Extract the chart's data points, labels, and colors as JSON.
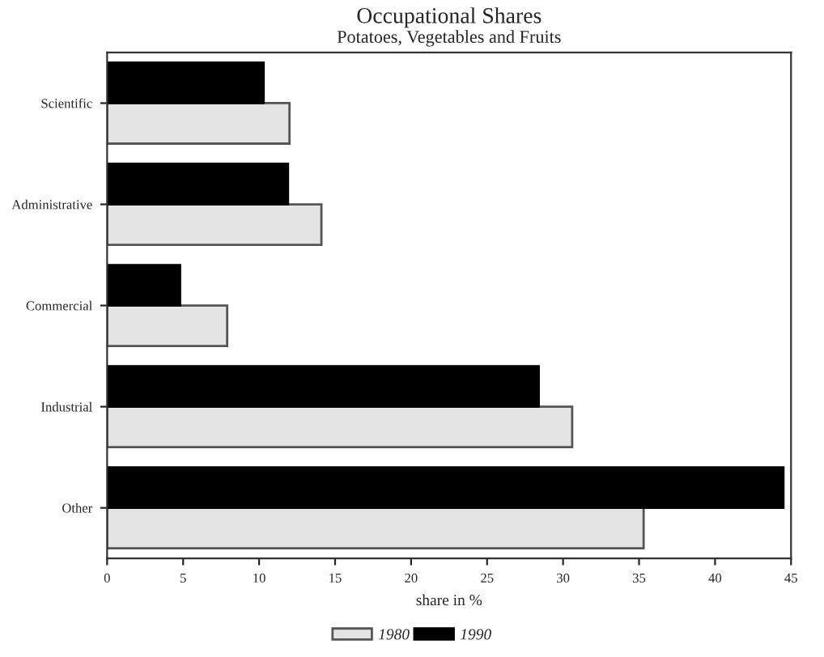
{
  "chart_data": {
    "type": "bar",
    "orientation": "horizontal",
    "title": "Occupational Shares",
    "subtitle": "Potatoes, Vegetables and Fruits",
    "xlabel": "share in %",
    "categories": [
      "Scientific",
      "Administrative",
      "Commercial",
      "Industrial",
      "Other"
    ],
    "series": [
      {
        "name": "1980",
        "color": "#e4e4e4",
        "values": [
          12.0,
          14.1,
          7.9,
          30.6,
          35.3
        ]
      },
      {
        "name": "1990",
        "color": "#000000",
        "values": [
          10.3,
          11.9,
          4.8,
          28.4,
          44.5
        ]
      }
    ],
    "xlim": [
      0,
      45
    ],
    "xticks": [
      0,
      5,
      10,
      15,
      20,
      25,
      30,
      35,
      40,
      45
    ],
    "grid": false,
    "legend": "bottom"
  }
}
